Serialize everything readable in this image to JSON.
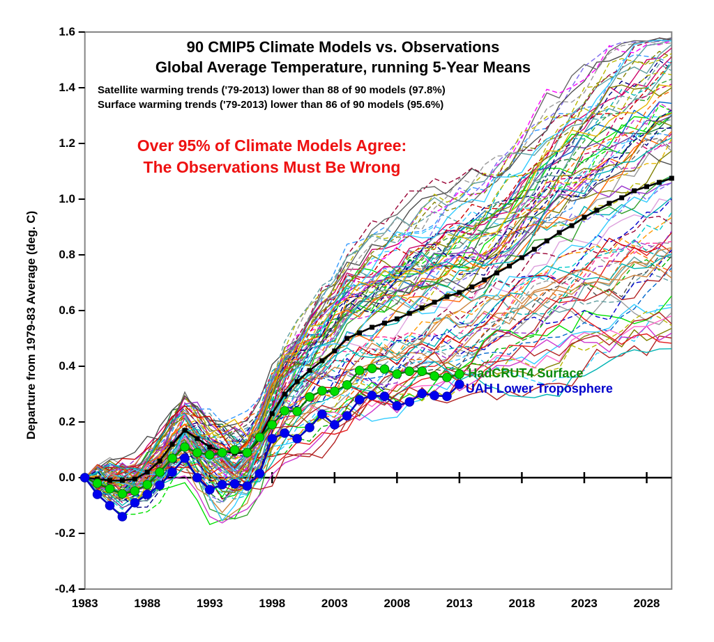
{
  "chart_data": {
    "type": "line",
    "title": "90 CMIP5 Climate Models vs. Observations",
    "subtitle": "Global Average Temperature, running 5-Year Means",
    "notes": [
      "Satellite warming trends ('79-2013) lower than 88 of 90 models (97.8%)",
      "Surface warming trends ('79-2013) lower than 86 of 90 models (95.6%)"
    ],
    "callout": {
      "lines": [
        "Over 95% of Climate Models Agree:",
        "The Observations Must Be Wrong"
      ],
      "color": "#ee1111"
    },
    "xlabel": "",
    "ylabel": "Departure from 1979-83 Average (deg. C)",
    "xlim": [
      1983,
      2030
    ],
    "ylim": [
      -0.4,
      1.6
    ],
    "x_ticks": [
      1983,
      1988,
      1993,
      1998,
      2003,
      2008,
      2013,
      2018,
      2023,
      2028
    ],
    "x_tick_labels": [
      "1983",
      "1988",
      "1993",
      "1998",
      "2003",
      "2008",
      "2013",
      "2018",
      "2023",
      "2028"
    ],
    "y_ticks": [
      1.6,
      1.4,
      1.2,
      1.0,
      0.8,
      0.6,
      0.4,
      0.2,
      0.0,
      -0.2,
      -0.4
    ],
    "y_tick_labels": [
      "1.6",
      "1.4",
      "1.2",
      "1.0",
      "0.8",
      "0.6",
      "0.4",
      "0.2",
      "0.0",
      "-0.2",
      "-0.4"
    ],
    "grid": false,
    "legend_position": "inline-annotations",
    "series": [
      {
        "name": "cmip5-multi-model-mean",
        "color": "#000000",
        "marker": "square",
        "marker_fill": "#000000",
        "x_start": 1983,
        "x_step": 1,
        "values": [
          0,
          -0.005,
          -0.01,
          -0.01,
          -0.005,
          0.02,
          0.06,
          0.12,
          0.17,
          0.14,
          0.11,
          0.095,
          0.088,
          0.09,
          0.14,
          0.23,
          0.3,
          0.345,
          0.385,
          0.42,
          0.455,
          0.5,
          0.52,
          0.54,
          0.555,
          0.57,
          0.59,
          0.61,
          0.63,
          0.65,
          0.665,
          0.685,
          0.71,
          0.735,
          0.76,
          0.79,
          0.82,
          0.85,
          0.88,
          0.905,
          0.935,
          0.96,
          0.985,
          1.005,
          1.03,
          1.045,
          1.06,
          1.075
        ]
      },
      {
        "name": "hadcrut4-surface",
        "label": "HadCRUT4 Surface",
        "label_color": "#0a8a0a",
        "label_anchor": {
          "year": 2013.7,
          "value": 0.375
        },
        "color": "#007a00",
        "marker": "circle",
        "marker_fill": "#00dd00",
        "x_start": 1983,
        "x_step": 1,
        "values": [
          0,
          -0.02,
          -0.04,
          -0.058,
          -0.048,
          -0.025,
          0.02,
          0.07,
          0.11,
          0.09,
          0.082,
          0.09,
          0.1,
          0.09,
          0.145,
          0.19,
          0.24,
          0.238,
          0.29,
          0.312,
          0.31,
          0.333,
          0.385,
          0.392,
          0.39,
          0.372,
          0.382,
          0.382,
          0.365,
          0.36,
          0.372
        ]
      },
      {
        "name": "uah-lower-troposphere",
        "label": "UAH Lower Troposphere",
        "label_color": "#0000cc",
        "label_anchor": {
          "year": 2013.5,
          "value": 0.32
        },
        "color": "#0000bb",
        "marker": "circle",
        "marker_fill": "#0000ee",
        "x_start": 1983,
        "x_step": 1,
        "values": [
          0,
          -0.06,
          -0.1,
          -0.14,
          -0.09,
          -0.06,
          -0.027,
          0.02,
          0.07,
          0,
          -0.043,
          -0.025,
          -0.022,
          -0.03,
          0.015,
          0.14,
          0.16,
          0.14,
          0.18,
          0.228,
          0.19,
          0.222,
          0.28,
          0.295,
          0.292,
          0.258,
          0.272,
          0.302,
          0.295,
          0.292,
          0.335
        ]
      }
    ],
    "model_ensemble": {
      "count": 90,
      "description": "90 individual CMIP5 model runs, 1983-2030, all starting at 0 in 1983, fanning out to roughly 0.5-1.6 deg C by 2030; mix of solid and dashed thin colored lines",
      "seed": 20,
      "dashed_fraction": 0.42,
      "scale_range": [
        0.45,
        1.55
      ],
      "noise_step": 0.105,
      "dip_fraction": 0.45,
      "dip_max": 0.2,
      "palette": [
        "#e41a1c",
        "#cc0000",
        "#b22222",
        "#ff6600",
        "#ff9900",
        "#e6b800",
        "#b8b800",
        "#808000",
        "#33a02c",
        "#00b300",
        "#00e000",
        "#1b7837",
        "#5f9ea0",
        "#00b3b3",
        "#00cccc",
        "#33ccff",
        "#3399ff",
        "#0066cc",
        "#0000cc",
        "#000080",
        "#6a3d9a",
        "#7b68ee",
        "#9933cc",
        "#cc33cc",
        "#ff00ff",
        "#ff66cc",
        "#ff3399",
        "#cc0066",
        "#990033",
        "#8b4513",
        "#a0522d",
        "#cd853f",
        "#dda0dd",
        "#666666",
        "#999999",
        "#4d4d4d"
      ]
    },
    "axis_colors": {
      "box": "#858585",
      "zero_line": "#000000",
      "tick": "#000000"
    }
  }
}
